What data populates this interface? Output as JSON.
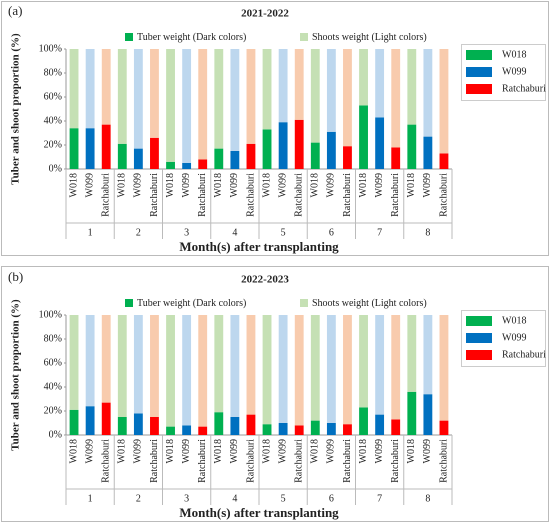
{
  "chart_data": [
    {
      "type": "bar",
      "stacked": true,
      "panel": "(a)",
      "title": "2021-2022",
      "segments": [
        {
          "name": "Tuber weight (Dark colors)",
          "color": "#00b050"
        },
        {
          "name": "Shoots weight (Light colors)",
          "color": "#c5e0b4"
        }
      ],
      "groups": [
        "1",
        "2",
        "3",
        "4",
        "5",
        "6",
        "7",
        "8"
      ],
      "series": [
        {
          "name": "W018",
          "color": "#00b050",
          "light_color": "#c5e0b4",
          "tuber": [
            34,
            21,
            6,
            17,
            33,
            22,
            53,
            37
          ],
          "shoots": [
            66,
            79,
            94,
            83,
            67,
            78,
            47,
            63
          ]
        },
        {
          "name": "W099",
          "color": "#0070c0",
          "light_color": "#bdd7ee",
          "tuber": [
            34,
            17,
            5,
            15,
            39,
            31,
            43,
            27
          ],
          "shoots": [
            66,
            83,
            95,
            85,
            61,
            69,
            57,
            73
          ]
        },
        {
          "name": "Ratchaburi",
          "color": "#ff0000",
          "light_color": "#f8cbad",
          "tuber": [
            37,
            26,
            8,
            21,
            41,
            19,
            18,
            13
          ],
          "shoots": [
            63,
            74,
            92,
            79,
            59,
            81,
            82,
            87
          ]
        }
      ],
      "x_label": "Month(s) after transplanting",
      "y_label": "Tuber and shoot proportion (%)",
      "ylim": [
        0,
        100
      ],
      "yticks": [
        {
          "value": 0,
          "label": "0%"
        },
        {
          "value": 20,
          "label": "20%"
        },
        {
          "value": 40,
          "label": "40%"
        },
        {
          "value": 60,
          "label": "60%"
        },
        {
          "value": 80,
          "label": "80%"
        },
        {
          "value": 100,
          "label": "100%"
        }
      ]
    },
    {
      "type": "bar",
      "stacked": true,
      "panel": "(b)",
      "title": "2022-2023",
      "segments": [
        {
          "name": "Tuber weight (Dark colors)",
          "color": "#00b050"
        },
        {
          "name": "Shoots weight (Light colors)",
          "color": "#c5e0b4"
        }
      ],
      "groups": [
        "1",
        "2",
        "3",
        "4",
        "5",
        "6",
        "7",
        "8"
      ],
      "series": [
        {
          "name": "W018",
          "color": "#00b050",
          "light_color": "#c5e0b4",
          "tuber": [
            21,
            15,
            7,
            19,
            9,
            12,
            23,
            36
          ],
          "shoots": [
            79,
            85,
            93,
            81,
            91,
            88,
            77,
            64
          ]
        },
        {
          "name": "W099",
          "color": "#0070c0",
          "light_color": "#bdd7ee",
          "tuber": [
            24,
            18,
            8,
            15,
            10,
            10,
            17,
            34
          ],
          "shoots": [
            76,
            82,
            92,
            85,
            90,
            90,
            83,
            66
          ]
        },
        {
          "name": "Ratchaburi",
          "color": "#ff0000",
          "light_color": "#f8cbad",
          "tuber": [
            27,
            15,
            7,
            17,
            8,
            9,
            13,
            12
          ],
          "shoots": [
            73,
            85,
            93,
            83,
            92,
            91,
            87,
            88
          ]
        }
      ],
      "x_label": "Month(s) after transplanting",
      "y_label": "Tuber and shoot proportion (%)",
      "ylim": [
        0,
        100
      ],
      "yticks": [
        {
          "value": 0,
          "label": "0%"
        },
        {
          "value": 20,
          "label": "20%"
        },
        {
          "value": 40,
          "label": "40%"
        },
        {
          "value": 60,
          "label": "60%"
        },
        {
          "value": 80,
          "label": "80%"
        },
        {
          "value": 100,
          "label": "100%"
        }
      ]
    }
  ]
}
